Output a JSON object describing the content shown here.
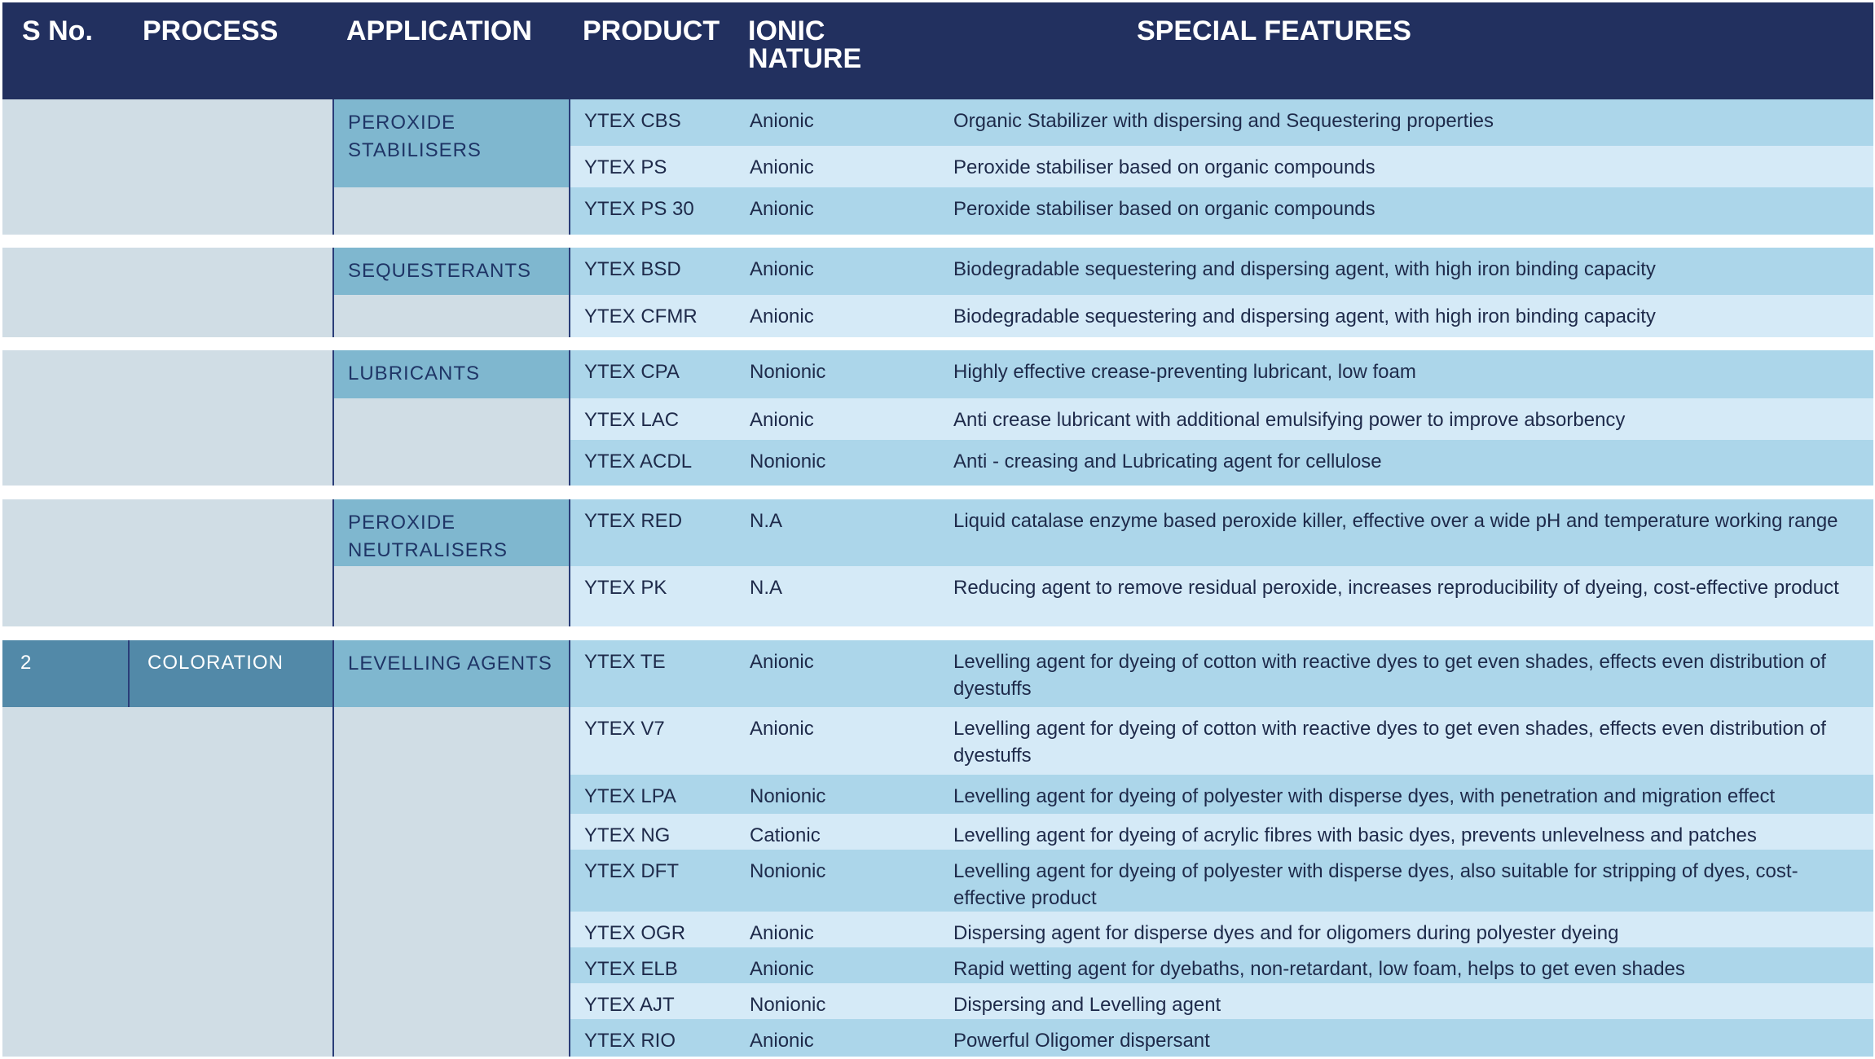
{
  "colors": {
    "header": "#22305f",
    "row_dark": "#acd6ea",
    "row_light": "#d5eaf7",
    "left_bg": "#d0dde5",
    "application": "#7fb7cf",
    "process": "#5289a8"
  },
  "header": {
    "sno": "S No.",
    "process": "PROCESS",
    "application": "APPLICATION",
    "product": "PRODUCT",
    "ionic_nature": "IONIC NATURE",
    "special_features": "SPECIAL FEATURES"
  },
  "groups": [
    {
      "sno": "",
      "process": "",
      "application": "PEROXIDE STABILISERS",
      "rows": [
        {
          "product": "YTEX CBS",
          "ionic": "Anionic",
          "features": "Organic Stabilizer with dispersing and Sequestering properties"
        },
        {
          "product": "YTEX PS",
          "ionic": "Anionic",
          "features": "Peroxide stabiliser based on organic compounds"
        },
        {
          "product": "YTEX PS 30",
          "ionic": "Anionic",
          "features": "Peroxide stabiliser based on organic compounds"
        }
      ]
    },
    {
      "sno": "",
      "process": "",
      "application": "SEQUESTERANTS",
      "rows": [
        {
          "product": "YTEX BSD",
          "ionic": "Anionic",
          "features": "Biodegradable sequestering and dispersing agent, with high iron binding capacity"
        },
        {
          "product": "YTEX CFMR",
          "ionic": "Anionic",
          "features": "Biodegradable sequestering and dispersing agent, with high iron binding capacity"
        }
      ]
    },
    {
      "sno": "",
      "process": "",
      "application": "LUBRICANTS",
      "rows": [
        {
          "product": "YTEX CPA",
          "ionic": "Nonionic",
          "features": "Highly effective crease-preventing lubricant, low foam"
        },
        {
          "product": "YTEX LAC",
          "ionic": "Anionic",
          "features": "Anti crease lubricant with additional emulsifying power to improve absorbency"
        },
        {
          "product": "YTEX ACDL",
          "ionic": "Nonionic",
          "features": "Anti - creasing and Lubricating agent for cellulose"
        }
      ]
    },
    {
      "sno": "",
      "process": "",
      "application": "PEROXIDE NEUTRALISERS",
      "rows": [
        {
          "product": "YTEX RED",
          "ionic": "N.A",
          "features": "Liquid catalase enzyme based peroxide killer, effective over a wide pH and temperature working range"
        },
        {
          "product": "YTEX PK",
          "ionic": "N.A",
          "features": "Reducing agent to remove residual peroxide, increases reproducibility of dyeing, cost-effective product"
        }
      ]
    },
    {
      "sno": "2",
      "process": "COLORATION",
      "application": "LEVELLING AGENTS",
      "rows": [
        {
          "product": "YTEX TE",
          "ionic": "Anionic",
          "features": "Levelling agent for dyeing of cotton with reactive dyes to get even shades, effects even distribution of dyestuffs"
        },
        {
          "product": "YTEX V7",
          "ionic": "Anionic",
          "features": "Levelling agent for dyeing of cotton with reactive dyes to get even shades, effects even distribution of dyestuffs"
        },
        {
          "product": "YTEX LPA",
          "ionic": "Nonionic",
          "features": "Levelling agent for dyeing of polyester with disperse dyes, with penetration and migration effect"
        },
        {
          "product": "YTEX NG",
          "ionic": "Cationic",
          "features": "Levelling agent for dyeing of acrylic fibres with basic dyes, prevents unlevelness and patches"
        },
        {
          "product": "YTEX DFT",
          "ionic": "Nonionic",
          "features": "Levelling agent for dyeing of polyester with disperse dyes, also suitable for stripping of dyes, cost- effective product"
        },
        {
          "product": "YTEX OGR",
          "ionic": "Anionic",
          "features": "Dispersing agent for disperse dyes and for oligomers during polyester dyeing"
        },
        {
          "product": "YTEX ELB",
          "ionic": "Anionic",
          "features": "Rapid wetting agent for dyebaths, non-retardant, low foam, helps to get even shades"
        },
        {
          "product": "YTEX AJT",
          "ionic": "Nonionic",
          "features": "Dispersing and Levelling agent"
        },
        {
          "product": "YTEX RIO",
          "ionic": "Anionic",
          "features": "Powerful Oligomer dispersant"
        }
      ]
    }
  ]
}
